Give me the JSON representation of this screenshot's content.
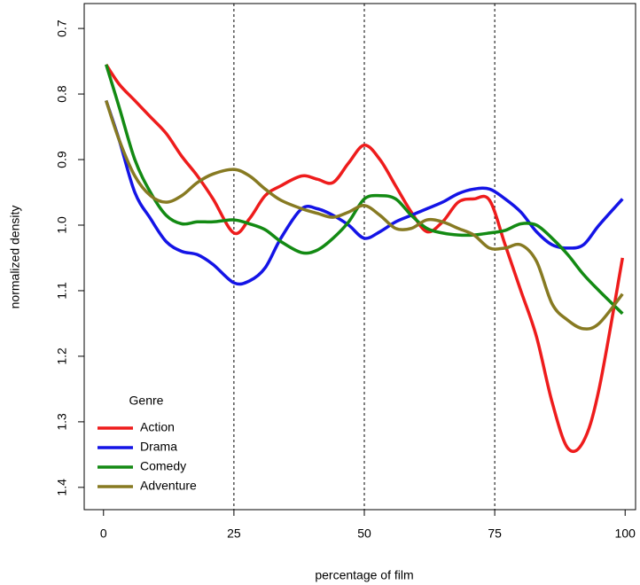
{
  "chart_data": {
    "type": "line",
    "x_label": "percentage of film",
    "y_label": "normalized density",
    "x": [
      0.5,
      3,
      6,
      9,
      12,
      15,
      18,
      21,
      25,
      28,
      31,
      34,
      38,
      41,
      44,
      47,
      50,
      53,
      56,
      59,
      62,
      65,
      68,
      71,
      74,
      77,
      80,
      83,
      86,
      89,
      92,
      95,
      99.5
    ],
    "series": [
      {
        "name": "Action",
        "color": "#ee1c1c",
        "values": [
          0.755,
          0.785,
          0.81,
          0.835,
          0.86,
          0.895,
          0.925,
          0.96,
          1.012,
          0.99,
          0.955,
          0.94,
          0.925,
          0.93,
          0.935,
          0.905,
          0.878,
          0.9,
          0.94,
          0.98,
          1.01,
          0.995,
          0.965,
          0.96,
          0.962,
          1.03,
          1.1,
          1.17,
          1.27,
          1.34,
          1.33,
          1.25,
          1.05
        ]
      },
      {
        "name": "Drama",
        "color": "#1414e6",
        "values": [
          0.81,
          0.87,
          0.95,
          0.99,
          1.025,
          1.04,
          1.045,
          1.06,
          1.088,
          1.085,
          1.065,
          1.02,
          0.975,
          0.975,
          0.985,
          1.0,
          1.02,
          1.01,
          0.995,
          0.985,
          0.975,
          0.965,
          0.952,
          0.945,
          0.945,
          0.96,
          0.98,
          1.01,
          1.03,
          1.035,
          1.03,
          1.0,
          0.96
        ]
      },
      {
        "name": "Comedy",
        "color": "#138a13",
        "values": [
          0.755,
          0.82,
          0.9,
          0.95,
          0.985,
          0.998,
          0.995,
          0.995,
          0.992,
          0.998,
          1.007,
          1.025,
          1.042,
          1.038,
          1.02,
          0.995,
          0.96,
          0.955,
          0.96,
          0.985,
          1.005,
          1.012,
          1.015,
          1.015,
          1.012,
          1.008,
          0.998,
          1.0,
          1.02,
          1.045,
          1.075,
          1.1,
          1.135
        ]
      },
      {
        "name": "Adventure",
        "color": "#877a22",
        "values": [
          0.81,
          0.87,
          0.925,
          0.955,
          0.965,
          0.955,
          0.935,
          0.922,
          0.915,
          0.925,
          0.945,
          0.962,
          0.975,
          0.982,
          0.988,
          0.98,
          0.97,
          0.985,
          1.005,
          1.005,
          0.992,
          0.995,
          1.005,
          1.015,
          1.035,
          1.035,
          1.03,
          1.055,
          1.12,
          1.145,
          1.158,
          1.15,
          1.105
        ]
      }
    ],
    "xlim": [
      -3.7,
      102.0
    ],
    "ylim": [
      0.662,
      1.434
    ],
    "y_reversed": true,
    "xticks": [
      0,
      25,
      50,
      75,
      100
    ],
    "yticks": [
      0.7,
      0.8,
      0.9,
      {
        "value": 1,
        "label": "1.0"
      },
      1.1,
      1.2,
      1.3,
      1.4
    ],
    "vlines": [
      25,
      50,
      75
    ],
    "legend_title": "Genre",
    "legend_position": "bottom-left"
  }
}
